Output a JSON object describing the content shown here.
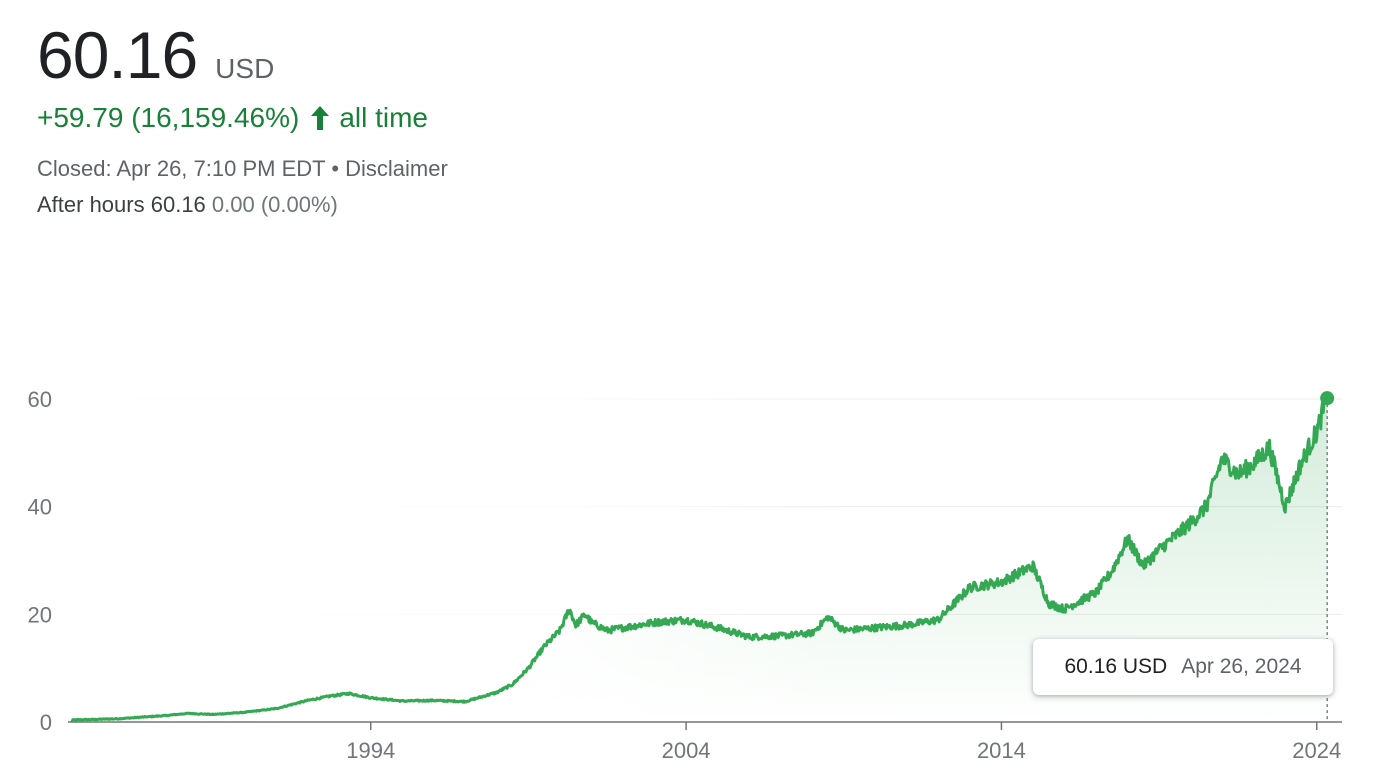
{
  "quote": {
    "price": "60.16",
    "currency": "USD",
    "change": "+59.79 (16,159.46%)",
    "period": "all time",
    "closed_text": "Closed: Apr 26, 7:10 PM EDT",
    "separator": "•",
    "disclaimer": "Disclaimer",
    "after_hours_label": "After hours",
    "after_hours_price": "60.16",
    "after_hours_change": "0.00 (0.00%)"
  },
  "tooltip": {
    "price": "60.16 USD",
    "date": "Apr 26, 2024"
  },
  "colors": {
    "line": "#34a853",
    "positive_text": "#188038",
    "grid": "#ececec",
    "axis": "#70757a"
  },
  "chart_data": {
    "type": "line",
    "title": "",
    "xlabel": "",
    "ylabel": "",
    "xlim": [
      1984.4,
      2024.8
    ],
    "ylim": [
      0,
      60
    ],
    "grid": "horizontal",
    "legend": "none",
    "x_ticks": [
      1994,
      2004,
      2014,
      2024
    ],
    "x_tick_labels": [
      "1994",
      "2004",
      "2014",
      "2024"
    ],
    "y_ticks": [
      0,
      20,
      40,
      60
    ],
    "y_tick_labels": [
      "0",
      "20",
      "40",
      "60"
    ],
    "series": [
      {
        "x": [
          1984.5,
          1986,
          1987.5,
          1988.2,
          1989,
          1990,
          1991,
          1992,
          1992.7,
          1993.3,
          1994,
          1995,
          1996,
          1997,
          1998,
          1998.5,
          1999,
          1999.5,
          2000,
          2000.3,
          2000.5,
          2000.8,
          2001,
          2001.5,
          2002,
          2003,
          2004,
          2005,
          2006,
          2007,
          2008,
          2008.5,
          2009,
          2010,
          2011,
          2012,
          2013,
          2013.5,
          2014,
          2015,
          2015.5,
          2016,
          2017,
          2017.5,
          2018,
          2018.5,
          2019,
          2020,
          2020.5,
          2021,
          2021.5,
          2022,
          2022.5,
          2023,
          2023.5,
          2024,
          2024.33
        ],
        "y": [
          0.37,
          0.6,
          1.2,
          1.6,
          1.4,
          1.8,
          2.5,
          4.0,
          4.8,
          5.3,
          4.5,
          3.9,
          4.0,
          3.8,
          5.5,
          7.0,
          10.0,
          14.0,
          17.0,
          21.0,
          18.0,
          20.0,
          18.5,
          17.0,
          17.5,
          18.5,
          19.0,
          17.5,
          15.8,
          16.0,
          16.5,
          19.5,
          17.0,
          17.5,
          18.0,
          19.0,
          25.0,
          25.5,
          26.0,
          29.0,
          22.0,
          21.0,
          24.0,
          28.0,
          34.0,
          29.0,
          32.0,
          37.0,
          40.0,
          49.0,
          46.0,
          48.0,
          51.0,
          40.0,
          48.0,
          54.0,
          60.16
        ]
      }
    ]
  }
}
